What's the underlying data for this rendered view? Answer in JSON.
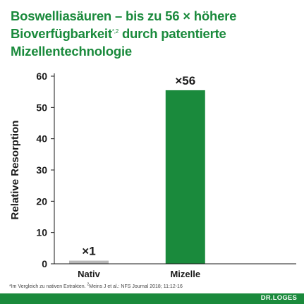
{
  "title": {
    "line1": "Boswelliasäuren – bis zu 56 × höhere",
    "line2_main": "Bioverfügbarkeit",
    "line2_sup": "*,2",
    "line2_rest": " durch patentierte",
    "line3": "Mizellentechnologie"
  },
  "chart_data": {
    "type": "bar",
    "categories": [
      "Nativ",
      "Mizelle"
    ],
    "values": [
      1,
      55.5
    ],
    "data_labels": [
      "×1",
      "×56"
    ],
    "colors": [
      "#b8b8b8",
      "#1a8a3c"
    ],
    "xlabel": "",
    "ylabel": "Relative Resorption",
    "ylim": [
      0,
      60
    ],
    "yticks": [
      0,
      10,
      20,
      30,
      40,
      50,
      60
    ],
    "grid": false,
    "legend": "none"
  },
  "footnote": {
    "part1": "*Im Vergleich zu nativen Extrakten. ",
    "sup": "2",
    "part2": "Meins J et al.: NFS Journal 2018; 11:12-16"
  },
  "brand": "DR.LOGES",
  "colors": {
    "accent": "#1a8a3c",
    "bar_muted": "#b8b8b8",
    "text": "#1a1a1a"
  }
}
